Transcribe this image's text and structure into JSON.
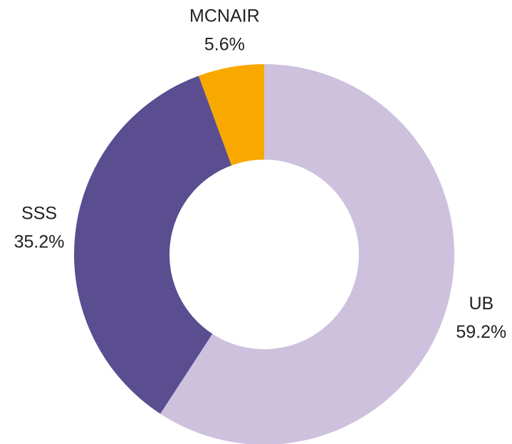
{
  "chart_data": {
    "type": "donut",
    "categories": [
      "UB",
      "SSS",
      "MCNAIR"
    ],
    "values": [
      59.2,
      35.2,
      5.6
    ],
    "value_labels": [
      "59.2%",
      "35.2%",
      "5.6%"
    ],
    "colors": [
      "#cdc1de",
      "#5a4e91",
      "#f9a800"
    ]
  }
}
